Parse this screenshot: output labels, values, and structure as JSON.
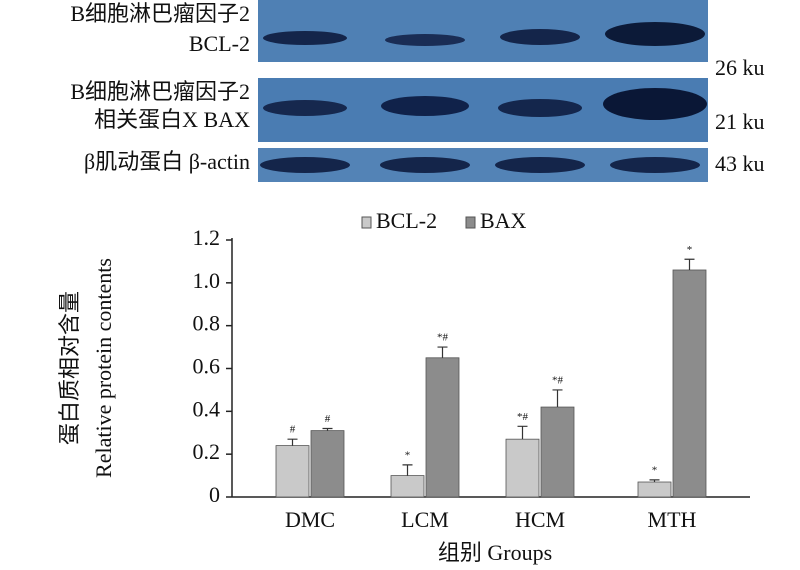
{
  "blot": {
    "rows": [
      {
        "label": [
          "B细胞淋巴瘤因子2",
          "BCL-2"
        ],
        "size": "26 ku"
      },
      {
        "label": [
          "B细胞淋巴瘤因子2",
          "相关蛋白X BAX"
        ],
        "size": "21 ku"
      },
      {
        "label": [
          "β肌动蛋白 β-actin"
        ],
        "size": "43 ku"
      }
    ]
  },
  "chart_data": {
    "type": "bar",
    "categories": [
      "DMC",
      "LCM",
      "HCM",
      "MTH"
    ],
    "series": [
      {
        "name": "BCL-2",
        "color": "#c9c9c9",
        "values": [
          0.24,
          0.1,
          0.27,
          0.07
        ],
        "errors": [
          0.03,
          0.05,
          0.06,
          0.01
        ],
        "significance": [
          "#",
          "*",
          "*#",
          "*"
        ]
      },
      {
        "name": "BAX",
        "color": "#8c8c8c",
        "values": [
          0.31,
          0.65,
          0.42,
          1.06
        ],
        "errors": [
          0.01,
          0.05,
          0.08,
          0.05
        ],
        "significance": [
          "#",
          "*#",
          "*#",
          "*"
        ]
      }
    ],
    "ylabel": [
      "蛋白质相对含量",
      "Relative protein contents"
    ],
    "xlabel": "组别 Groups",
    "ylim": [
      0,
      1.2
    ],
    "yticks": [
      0,
      0.2,
      0.4,
      0.6,
      0.8,
      {
        "value": 1,
        "label": "1.0"
      },
      1.2
    ]
  }
}
